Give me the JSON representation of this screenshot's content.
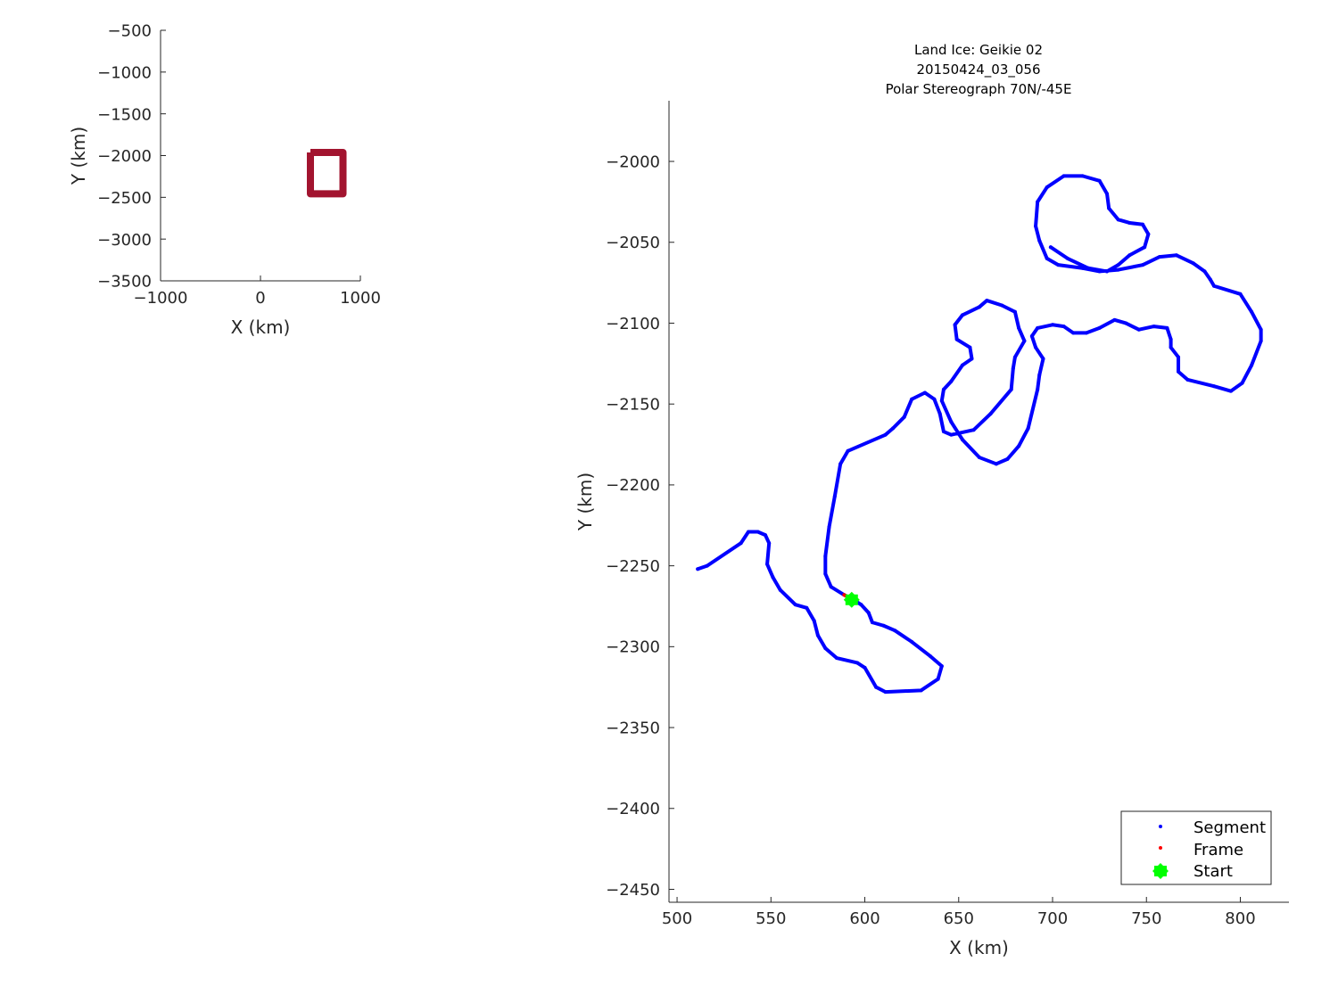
{
  "chart_data": [
    {
      "type": "line",
      "title": "",
      "xlabel": "X (km)",
      "ylabel": "Y (km)",
      "xlim": [
        -1000,
        1000
      ],
      "ylim": [
        -3500,
        -500
      ],
      "xticks": [
        -1000,
        0,
        1000
      ],
      "yticks": [
        -3500,
        -3000,
        -2500,
        -2000,
        -1500,
        -1000,
        -500
      ],
      "xtick_labels": [
        "−1000",
        "0",
        "1000"
      ],
      "ytick_labels": [
        "−3500",
        "−3000",
        "−2500",
        "−2000",
        "−1500",
        "−1000",
        "−500"
      ],
      "grid": false,
      "series": [
        {
          "color": "#A2142F",
          "x": [
            500,
            826,
            826,
            500,
            500
          ],
          "y": [
            -1962,
            -1962,
            -2458,
            -2458,
            -1962
          ]
        }
      ]
    },
    {
      "type": "scatter",
      "title": [
        "Land Ice: Geikie 02",
        "20150424_03_056",
        "Polar Stereograph 70N/-45E"
      ],
      "xlabel": "X (km)",
      "ylabel": "Y (km)",
      "xlim": [
        495.7,
        825.9
      ],
      "ylim": [
        -2458,
        -1962.5
      ],
      "xticks": [
        500,
        550,
        600,
        650,
        700,
        750,
        800
      ],
      "yticks": [
        -2450,
        -2400,
        -2350,
        -2300,
        -2250,
        -2200,
        -2150,
        -2100,
        -2050,
        -2000
      ],
      "xtick_labels": [
        "500",
        "550",
        "600",
        "650",
        "700",
        "750",
        "800"
      ],
      "ytick_labels": [
        "−2450",
        "−2400",
        "−2350",
        "−2300",
        "−2250",
        "−2200",
        "−2150",
        "−2100",
        "−2050",
        "−2000"
      ],
      "grid": false,
      "legend_position": "bottom-right",
      "series": [
        {
          "name": "Segment",
          "color": "#0000FF",
          "marker": "dot",
          "x": [
            511,
            516,
            534,
            538,
            543,
            547,
            549,
            548,
            551,
            555,
            563,
            569,
            573,
            575,
            579,
            585,
            596,
            600,
            606,
            611,
            630,
            639,
            641,
            635,
            625,
            616,
            610,
            604,
            602,
            598,
            594,
            589,
            582,
            579,
            579,
            581,
            584,
            587,
            591,
            611,
            615,
            621,
            625,
            632,
            637,
            640,
            642,
            646,
            658,
            667,
            678,
            679,
            680,
            685,
            682,
            680,
            673,
            665,
            661,
            652,
            648,
            649,
            656,
            657,
            652,
            646,
            642,
            641,
            646,
            652,
            661,
            670,
            676,
            682,
            687,
            692,
            693,
            695,
            691,
            689,
            692,
            700,
            706,
            711,
            718,
            725,
            733,
            739,
            746,
            754,
            761,
            763,
            763,
            767,
            767,
            772,
            786,
            795,
            801,
            806,
            811,
            811,
            806,
            800,
            786,
            784,
            781,
            775,
            766,
            757,
            748,
            735,
            725,
            716,
            703,
            697,
            693,
            691,
            692,
            697,
            706,
            716,
            725,
            729,
            730,
            735,
            741,
            748,
            751,
            749,
            741,
            735,
            729,
            719,
            708,
            699
          ],
          "y": [
            -2252,
            -2250,
            -2236,
            -2229,
            -2229,
            -2231,
            -2236,
            -2249,
            -2257,
            -2265,
            -2274,
            -2276,
            -2284,
            -2293,
            -2301,
            -2307,
            -2310,
            -2313,
            -2325,
            -2328,
            -2327,
            -2320,
            -2312,
            -2306,
            -2297,
            -2290,
            -2287,
            -2285,
            -2279,
            -2274,
            -2271,
            -2268,
            -2263,
            -2255,
            -2244,
            -2226,
            -2207,
            -2187,
            -2179,
            -2169,
            -2165,
            -2158,
            -2147,
            -2143,
            -2147,
            -2156,
            -2167,
            -2169,
            -2166,
            -2156,
            -2141,
            -2128,
            -2121,
            -2111,
            -2103,
            -2093,
            -2089,
            -2086,
            -2090,
            -2095,
            -2101,
            -2110,
            -2115,
            -2122,
            -2126,
            -2136,
            -2141,
            -2148,
            -2161,
            -2172,
            -2183,
            -2187,
            -2184,
            -2176,
            -2165,
            -2141,
            -2132,
            -2122,
            -2115,
            -2108,
            -2103,
            -2101,
            -2102,
            -2106,
            -2106,
            -2103,
            -2098,
            -2100,
            -2104,
            -2102,
            -2103,
            -2110,
            -2115,
            -2121,
            -2130,
            -2135,
            -2139,
            -2142,
            -2137,
            -2126,
            -2111,
            -2104,
            -2093,
            -2082,
            -2077,
            -2073,
            -2068,
            -2063,
            -2058,
            -2059,
            -2064,
            -2067,
            -2068,
            -2066,
            -2064,
            -2060,
            -2049,
            -2040,
            -2025,
            -2016,
            -2009,
            -2009,
            -2012,
            -2020,
            -2029,
            -2036,
            -2038,
            -2039,
            -2045,
            -2053,
            -2058,
            -2064,
            -2068,
            -2066,
            -2060,
            -2053
          ]
        },
        {
          "name": "Frame",
          "color": "#FF0000",
          "marker": "dot",
          "x": [
            589,
            592
          ],
          "y": [
            -2268,
            -2270
          ]
        },
        {
          "name": "Start",
          "color": "#00FF00",
          "marker": "hexagram",
          "x": [
            593
          ],
          "y": [
            -2271
          ]
        }
      ]
    }
  ]
}
